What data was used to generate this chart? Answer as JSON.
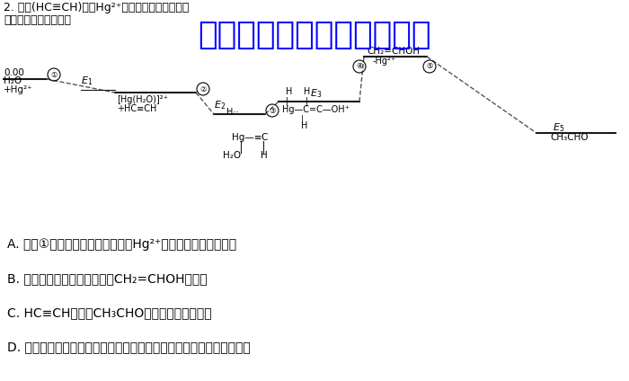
{
  "bg_color": "#ffffff",
  "watermark_text": "微信公众号关注：趣找答案",
  "watermark_color": "#0000ff",
  "watermark_fontsize": 26,
  "top_line1": "2. 乙炔(HC≡CH)能在Hg²⁺催化下与水反应生成乙",
  "top_line2": "示。下列说法正确的是",
  "answer_options": [
    "A. 过程①中，水分子中的氧原子向Hg²⁺的空轨道提供孤对电子",
    "B. 本反应历程涉及的物质中，CH₂=CHOH最稳定",
    "C. HC≡CH转化为CH₃CHO的过程涉及消去反应",
    "D. 其他条件不变时，更换其他催化剂可改变由乙炔和水制备乙醛的焓变"
  ],
  "answer_fontsize": 10,
  "text_color": "#000000"
}
